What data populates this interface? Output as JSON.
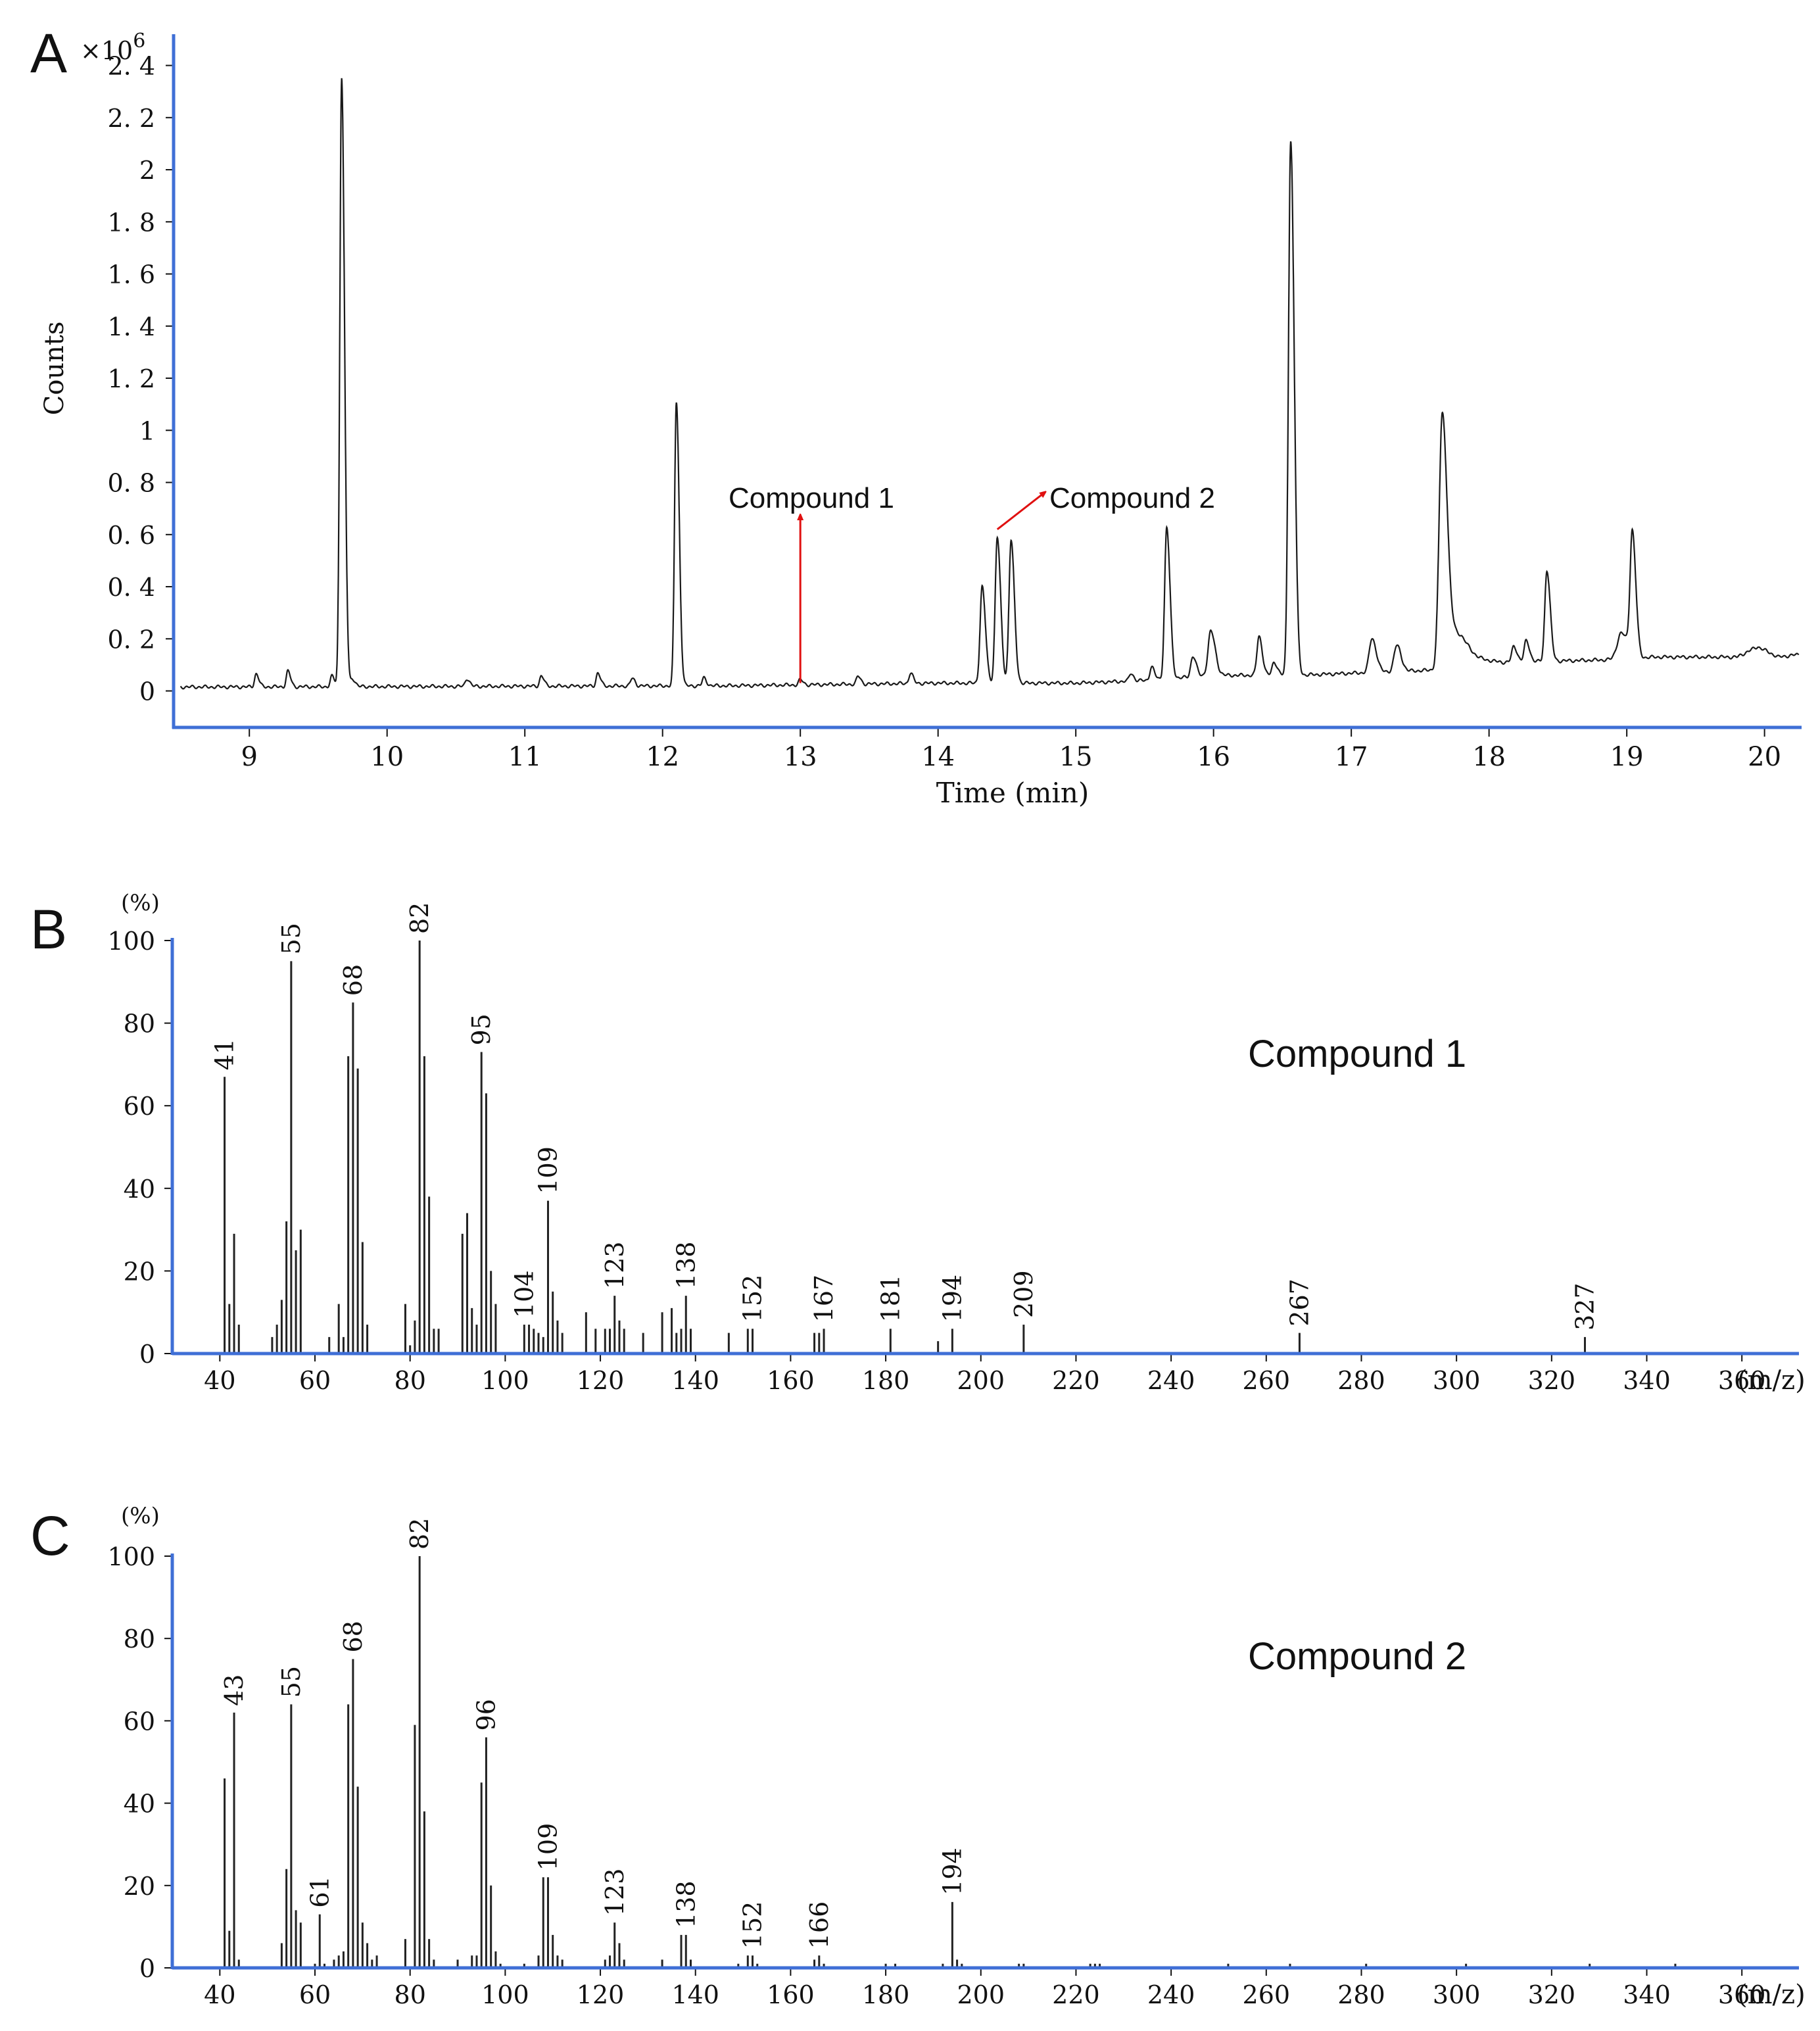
{
  "colors": {
    "axis": "#3f6fd6",
    "trace": "#1a1a1a",
    "arrow": "#e01010",
    "text": "#111111"
  },
  "chart_data": [
    {
      "panel_label": "A",
      "type": "line",
      "multiplier_label": "×10",
      "multiplier_exponent": "6",
      "xlabel": "Time (min)",
      "ylabel": "Counts",
      "xlim": [
        8.45,
        20.25
      ],
      "ylim": [
        -0.14,
        2.52
      ],
      "x_ticks": [
        9,
        10,
        11,
        12,
        13,
        14,
        15,
        16,
        17,
        18,
        19,
        20
      ],
      "x_tick_labels": [
        "9",
        "10",
        "11",
        "12",
        "13",
        "14",
        "15",
        "16",
        "17",
        "18",
        "19",
        "20"
      ],
      "y_ticks": [
        0,
        0.2,
        0.4,
        0.6,
        0.8,
        1,
        1.2,
        1.4,
        1.6,
        1.8,
        2,
        2.2,
        2.4
      ],
      "y_tick_labels": [
        "0",
        "0. 2",
        "0. 4",
        "0. 6",
        "0. 8",
        "1",
        "1. 2",
        "1. 4",
        "1. 6",
        "1. 8",
        "2",
        "2. 2",
        "2. 4"
      ],
      "baseline": [
        [
          8.5,
          0.015
        ],
        [
          12.5,
          0.02
        ],
        [
          14.0,
          0.03
        ],
        [
          15.0,
          0.03
        ],
        [
          15.5,
          0.04
        ],
        [
          16.0,
          0.06
        ],
        [
          16.6,
          0.06
        ],
        [
          17.6,
          0.08
        ],
        [
          17.8,
          0.13
        ],
        [
          18.1,
          0.11
        ],
        [
          18.9,
          0.12
        ],
        [
          19.2,
          0.13
        ],
        [
          19.8,
          0.13
        ],
        [
          19.95,
          0.17
        ],
        [
          20.1,
          0.13
        ],
        [
          20.25,
          0.14
        ]
      ],
      "peaks": [
        {
          "x": 9.05,
          "h": 0.05,
          "w": 0.012
        },
        {
          "x": 9.28,
          "h": 0.06,
          "w": 0.012
        },
        {
          "x": 9.6,
          "h": 0.04,
          "w": 0.012
        },
        {
          "x": 9.67,
          "h": 2.34,
          "w": 0.013
        },
        {
          "x": 9.75,
          "h": 0.03,
          "w": 0.012
        },
        {
          "x": 10.58,
          "h": 0.03,
          "w": 0.012
        },
        {
          "x": 11.12,
          "h": 0.04,
          "w": 0.012
        },
        {
          "x": 11.53,
          "h": 0.05,
          "w": 0.012
        },
        {
          "x": 11.78,
          "h": 0.03,
          "w": 0.012
        },
        {
          "x": 12.1,
          "h": 1.09,
          "w": 0.013
        },
        {
          "x": 12.3,
          "h": 0.03,
          "w": 0.012
        },
        {
          "x": 13.0,
          "h": 0.02,
          "w": 0.012
        },
        {
          "x": 13.42,
          "h": 0.03,
          "w": 0.012
        },
        {
          "x": 13.8,
          "h": 0.04,
          "w": 0.012
        },
        {
          "x": 14.32,
          "h": 0.37,
          "w": 0.015
        },
        {
          "x": 14.43,
          "h": 0.56,
          "w": 0.015
        },
        {
          "x": 14.53,
          "h": 0.55,
          "w": 0.015
        },
        {
          "x": 15.4,
          "h": 0.03,
          "w": 0.012
        },
        {
          "x": 15.55,
          "h": 0.05,
          "w": 0.013
        },
        {
          "x": 15.66,
          "h": 0.58,
          "w": 0.015
        },
        {
          "x": 15.85,
          "h": 0.08,
          "w": 0.015
        },
        {
          "x": 15.98,
          "h": 0.17,
          "w": 0.02
        },
        {
          "x": 16.33,
          "h": 0.15,
          "w": 0.015
        },
        {
          "x": 16.44,
          "h": 0.05,
          "w": 0.015
        },
        {
          "x": 16.56,
          "h": 2.05,
          "w": 0.016
        },
        {
          "x": 17.15,
          "h": 0.13,
          "w": 0.02
        },
        {
          "x": 17.33,
          "h": 0.1,
          "w": 0.02
        },
        {
          "x": 17.66,
          "h": 0.95,
          "w": 0.022
        },
        {
          "x": 17.75,
          "h": 0.1,
          "w": 0.05
        },
        {
          "x": 18.18,
          "h": 0.06,
          "w": 0.015
        },
        {
          "x": 18.27,
          "h": 0.08,
          "w": 0.015
        },
        {
          "x": 18.42,
          "h": 0.35,
          "w": 0.015
        },
        {
          "x": 18.96,
          "h": 0.1,
          "w": 0.03
        },
        {
          "x": 19.04,
          "h": 0.47,
          "w": 0.016
        }
      ],
      "annotations": [
        {
          "text": "Compound 1",
          "arrow_from": [
            13.0,
            0.03
          ],
          "arrow_to": [
            13.0,
            0.67
          ]
        },
        {
          "text": "Compound 2",
          "arrow_from": [
            14.43,
            0.62
          ],
          "arrow_to": [
            14.77,
            0.76
          ]
        }
      ]
    },
    {
      "panel_label": "B",
      "type": "bar",
      "title": "Compound 1",
      "unit_label": "(%)",
      "xlim": [
        30,
        372
      ],
      "ylim": [
        0,
        100
      ],
      "x_ticks": [
        40,
        60,
        80,
        100,
        120,
        140,
        160,
        180,
        200,
        220,
        240,
        260,
        280,
        300,
        320,
        340,
        360
      ],
      "x_tick_labels": [
        "40",
        "60",
        "80",
        "100",
        "120",
        "140",
        "160",
        "180",
        "200",
        "220",
        "240",
        "260",
        "280",
        "300",
        "320",
        "340",
        "360"
      ],
      "x_unit_label": "(m/z)",
      "y_ticks": [
        0,
        20,
        40,
        60,
        80,
        100
      ],
      "y_tick_labels": [
        "0",
        "20",
        "40",
        "60",
        "80",
        "100"
      ],
      "peaks": [
        [
          41,
          67
        ],
        [
          42,
          12
        ],
        [
          43,
          29
        ],
        [
          44,
          7
        ],
        [
          51,
          4
        ],
        [
          52,
          7
        ],
        [
          53,
          13
        ],
        [
          54,
          32
        ],
        [
          55,
          95
        ],
        [
          56,
          25
        ],
        [
          57,
          30
        ],
        [
          63,
          4
        ],
        [
          65,
          12
        ],
        [
          66,
          4
        ],
        [
          67,
          72
        ],
        [
          68,
          85
        ],
        [
          69,
          69
        ],
        [
          70,
          27
        ],
        [
          71,
          7
        ],
        [
          79,
          12
        ],
        [
          80,
          2
        ],
        [
          81,
          8
        ],
        [
          82,
          100
        ],
        [
          83,
          72
        ],
        [
          84,
          38
        ],
        [
          85,
          6
        ],
        [
          86,
          6
        ],
        [
          91,
          29
        ],
        [
          92,
          34
        ],
        [
          93,
          11
        ],
        [
          94,
          7
        ],
        [
          95,
          73
        ],
        [
          96,
          63
        ],
        [
          97,
          20
        ],
        [
          98,
          12
        ],
        [
          104,
          7
        ],
        [
          105,
          7
        ],
        [
          106,
          6
        ],
        [
          107,
          5
        ],
        [
          108,
          4
        ],
        [
          109,
          37
        ],
        [
          110,
          15
        ],
        [
          111,
          8
        ],
        [
          112,
          5
        ],
        [
          117,
          10
        ],
        [
          119,
          6
        ],
        [
          121,
          6
        ],
        [
          122,
          6
        ],
        [
          123,
          14
        ],
        [
          124,
          8
        ],
        [
          125,
          6
        ],
        [
          129,
          5
        ],
        [
          133,
          10
        ],
        [
          135,
          11
        ],
        [
          136,
          5
        ],
        [
          137,
          6
        ],
        [
          138,
          14
        ],
        [
          139,
          6
        ],
        [
          147,
          5
        ],
        [
          151,
          6
        ],
        [
          152,
          6
        ],
        [
          165,
          5
        ],
        [
          166,
          5
        ],
        [
          167,
          6
        ],
        [
          181,
          6
        ],
        [
          191,
          3
        ],
        [
          194,
          6
        ],
        [
          209,
          7
        ],
        [
          267,
          5
        ],
        [
          327,
          4
        ]
      ],
      "labels": [
        [
          41,
          "41"
        ],
        [
          55,
          "55"
        ],
        [
          68,
          "68"
        ],
        [
          82,
          "82"
        ],
        [
          95,
          "95"
        ],
        [
          104,
          "104"
        ],
        [
          109,
          "109"
        ],
        [
          123,
          "123"
        ],
        [
          138,
          "138"
        ],
        [
          152,
          "152"
        ],
        [
          167,
          "167"
        ],
        [
          181,
          "181"
        ],
        [
          194,
          "194"
        ],
        [
          209,
          "209"
        ],
        [
          267,
          "267"
        ],
        [
          327,
          "327"
        ]
      ]
    },
    {
      "panel_label": "C",
      "type": "bar",
      "title": "Compound 2",
      "unit_label": "(%)",
      "xlim": [
        30,
        372
      ],
      "ylim": [
        0,
        100
      ],
      "x_ticks": [
        40,
        60,
        80,
        100,
        120,
        140,
        160,
        180,
        200,
        220,
        240,
        260,
        280,
        300,
        320,
        340,
        360
      ],
      "x_tick_labels": [
        "40",
        "60",
        "80",
        "100",
        "120",
        "140",
        "160",
        "180",
        "200",
        "220",
        "240",
        "260",
        "280",
        "300",
        "320",
        "340",
        "360"
      ],
      "x_unit_label": "(m/z)",
      "y_ticks": [
        0,
        20,
        40,
        60,
        80,
        100
      ],
      "y_tick_labels": [
        "0",
        "20",
        "40",
        "60",
        "80",
        "100"
      ],
      "peaks": [
        [
          41,
          46
        ],
        [
          42,
          9
        ],
        [
          43,
          62
        ],
        [
          44,
          2
        ],
        [
          53,
          6
        ],
        [
          54,
          24
        ],
        [
          55,
          64
        ],
        [
          56,
          14
        ],
        [
          57,
          11
        ],
        [
          60,
          1
        ],
        [
          61,
          13
        ],
        [
          62,
          1
        ],
        [
          64,
          2
        ],
        [
          65,
          3
        ],
        [
          66,
          4
        ],
        [
          67,
          64
        ],
        [
          68,
          75
        ],
        [
          69,
          44
        ],
        [
          70,
          11
        ],
        [
          71,
          6
        ],
        [
          72,
          2
        ],
        [
          73,
          3
        ],
        [
          79,
          7
        ],
        [
          81,
          59
        ],
        [
          82,
          100
        ],
        [
          83,
          38
        ],
        [
          84,
          7
        ],
        [
          85,
          2
        ],
        [
          90,
          2
        ],
        [
          93,
          3
        ],
        [
          94,
          3
        ],
        [
          95,
          45
        ],
        [
          96,
          56
        ],
        [
          97,
          20
        ],
        [
          98,
          4
        ],
        [
          99,
          1
        ],
        [
          104,
          1
        ],
        [
          107,
          3
        ],
        [
          108,
          22
        ],
        [
          109,
          22
        ],
        [
          110,
          8
        ],
        [
          111,
          3
        ],
        [
          112,
          2
        ],
        [
          121,
          2
        ],
        [
          122,
          3
        ],
        [
          123,
          11
        ],
        [
          124,
          6
        ],
        [
          125,
          2
        ],
        [
          133,
          2
        ],
        [
          137,
          8
        ],
        [
          138,
          8
        ],
        [
          139,
          2
        ],
        [
          149,
          1
        ],
        [
          151,
          3
        ],
        [
          152,
          3
        ],
        [
          153,
          1
        ],
        [
          165,
          2
        ],
        [
          166,
          3
        ],
        [
          167,
          1
        ],
        [
          180,
          1
        ],
        [
          182,
          1
        ],
        [
          192,
          1
        ],
        [
          194,
          16
        ],
        [
          195,
          2
        ],
        [
          196,
          1
        ],
        [
          208,
          1
        ],
        [
          209,
          1
        ],
        [
          223,
          1
        ],
        [
          224,
          1
        ],
        [
          225,
          1
        ],
        [
          252,
          1
        ],
        [
          265,
          1
        ],
        [
          281,
          1
        ],
        [
          302,
          1
        ],
        [
          328,
          1
        ],
        [
          346,
          1
        ]
      ],
      "labels": [
        [
          43,
          "43"
        ],
        [
          55,
          "55"
        ],
        [
          61,
          "61"
        ],
        [
          68,
          "68"
        ],
        [
          82,
          "82"
        ],
        [
          96,
          "96"
        ],
        [
          109,
          "109"
        ],
        [
          123,
          "123"
        ],
        [
          138,
          "138"
        ],
        [
          152,
          "152"
        ],
        [
          166,
          "166"
        ],
        [
          194,
          "194"
        ]
      ]
    }
  ]
}
